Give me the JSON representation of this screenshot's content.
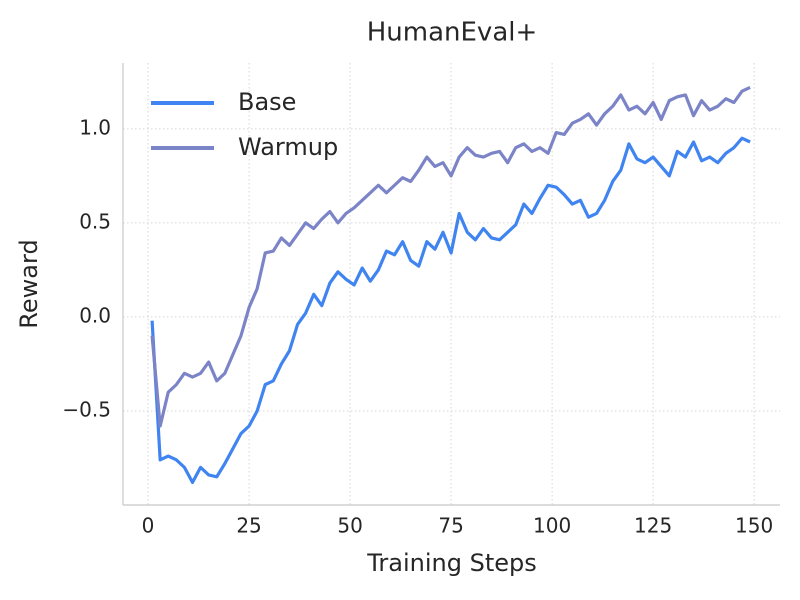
{
  "chart_data": {
    "type": "line",
    "title": "HumanEval+",
    "x_label": "Training Steps",
    "y_label": "Reward",
    "x": [
      1,
      3,
      5,
      7,
      9,
      11,
      13,
      15,
      17,
      19,
      21,
      23,
      25,
      27,
      29,
      31,
      33,
      35,
      37,
      39,
      41,
      43,
      45,
      47,
      49,
      51,
      53,
      55,
      57,
      59,
      61,
      63,
      65,
      67,
      69,
      71,
      73,
      75,
      77,
      79,
      81,
      83,
      85,
      87,
      89,
      91,
      93,
      95,
      97,
      99,
      101,
      103,
      105,
      107,
      109,
      111,
      113,
      115,
      117,
      119,
      121,
      123,
      125,
      127,
      129,
      131,
      133,
      135,
      137,
      139,
      141,
      143,
      145,
      147,
      149
    ],
    "series": [
      {
        "name": "Base",
        "color": "#3f84f0",
        "values": [
          -0.02,
          -0.76,
          -0.74,
          -0.76,
          -0.8,
          -0.88,
          -0.8,
          -0.84,
          -0.85,
          -0.78,
          -0.7,
          -0.62,
          -0.58,
          -0.5,
          -0.36,
          -0.34,
          -0.25,
          -0.18,
          -0.04,
          0.02,
          0.12,
          0.06,
          0.18,
          0.24,
          0.2,
          0.17,
          0.26,
          0.19,
          0.25,
          0.35,
          0.33,
          0.4,
          0.3,
          0.27,
          0.4,
          0.36,
          0.45,
          0.34,
          0.55,
          0.45,
          0.41,
          0.47,
          0.42,
          0.41,
          0.45,
          0.49,
          0.6,
          0.55,
          0.63,
          0.7,
          0.69,
          0.65,
          0.6,
          0.62,
          0.53,
          0.55,
          0.62,
          0.72,
          0.78,
          0.92,
          0.84,
          0.82,
          0.85,
          0.8,
          0.75,
          0.88,
          0.85,
          0.93,
          0.83,
          0.85,
          0.82,
          0.87,
          0.9,
          0.95,
          0.93
        ]
      },
      {
        "name": "Warmup",
        "color": "#7c84c8",
        "values": [
          -0.1,
          -0.58,
          -0.4,
          -0.36,
          -0.3,
          -0.32,
          -0.3,
          -0.24,
          -0.34,
          -0.3,
          -0.2,
          -0.1,
          0.05,
          0.15,
          0.34,
          0.35,
          0.42,
          0.38,
          0.44,
          0.5,
          0.47,
          0.52,
          0.56,
          0.5,
          0.55,
          0.58,
          0.62,
          0.66,
          0.7,
          0.66,
          0.7,
          0.74,
          0.72,
          0.78,
          0.85,
          0.8,
          0.82,
          0.75,
          0.85,
          0.9,
          0.86,
          0.85,
          0.87,
          0.88,
          0.82,
          0.9,
          0.92,
          0.88,
          0.9,
          0.87,
          0.98,
          0.97,
          1.03,
          1.05,
          1.08,
          1.02,
          1.08,
          1.12,
          1.18,
          1.1,
          1.12,
          1.08,
          1.14,
          1.05,
          1.15,
          1.17,
          1.18,
          1.07,
          1.15,
          1.1,
          1.12,
          1.16,
          1.14,
          1.2,
          1.22
        ]
      }
    ],
    "xlim": [
      -6.2,
      156.4
    ],
    "ylim": [
      -1.0,
      1.35
    ],
    "xticks": [
      0,
      25,
      50,
      75,
      100,
      125,
      150
    ],
    "yticks": [
      {
        "value": -0.5,
        "label": "−0.5"
      },
      {
        "value": 0,
        "label": "0.0"
      },
      0.5,
      {
        "value": 1,
        "label": "1.0"
      }
    ],
    "grid": true,
    "legend": "upper left"
  }
}
